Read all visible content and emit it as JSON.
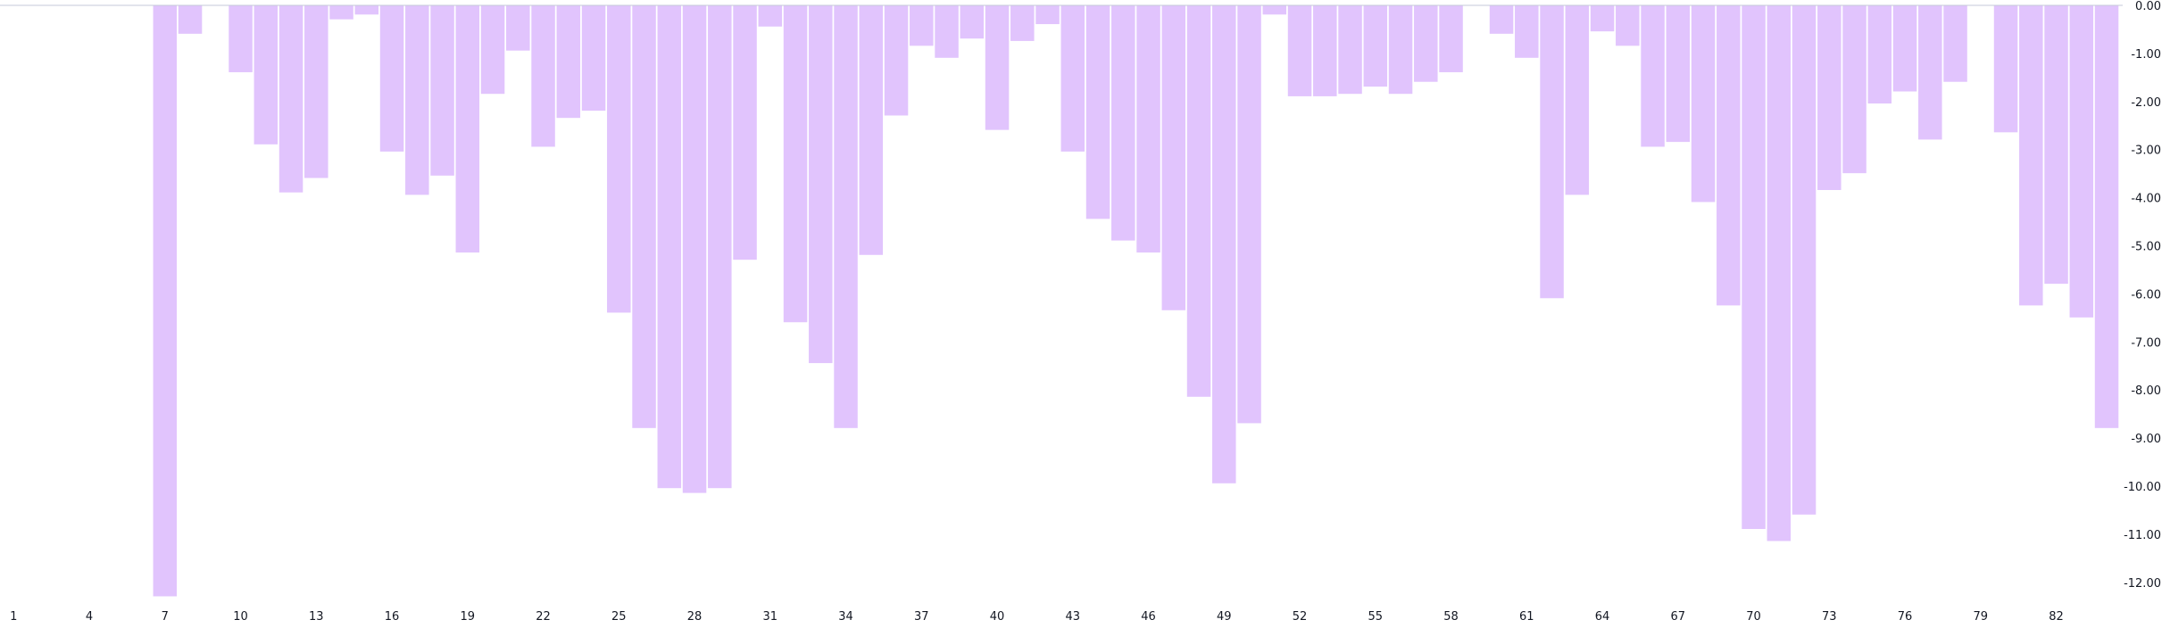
{
  "chart_data": {
    "type": "bar",
    "orientation": "vertical",
    "x": [
      1,
      2,
      3,
      4,
      5,
      6,
      7,
      8,
      9,
      10,
      11,
      12,
      13,
      14,
      15,
      16,
      17,
      18,
      19,
      20,
      21,
      22,
      23,
      24,
      25,
      26,
      27,
      28,
      29,
      30,
      31,
      32,
      33,
      34,
      35,
      36,
      37,
      38,
      39,
      40,
      41,
      42,
      43,
      44,
      45,
      46,
      47,
      48,
      49,
      50,
      51,
      52,
      53,
      54,
      55,
      56,
      57,
      58,
      59,
      60,
      61,
      62,
      63,
      64,
      65,
      66,
      67,
      68,
      69,
      70,
      71,
      72,
      73,
      74,
      75,
      76,
      77,
      78,
      79,
      80,
      81,
      82,
      83,
      84
    ],
    "values": [
      0,
      0,
      0,
      0,
      0,
      0,
      -12.3,
      -0.6,
      0,
      -1.4,
      -2.9,
      -3.9,
      -3.6,
      -0.3,
      -0.2,
      -3.05,
      -3.95,
      -3.55,
      -5.15,
      -1.85,
      -0.95,
      -2.95,
      -2.35,
      -2.2,
      -6.4,
      -8.8,
      -10.05,
      -10.15,
      -10.05,
      -5.3,
      -0.45,
      -6.6,
      -7.45,
      -8.8,
      -5.2,
      -2.3,
      -0.85,
      -1.1,
      -0.7,
      -2.6,
      -0.75,
      -0.4,
      -3.05,
      -4.45,
      -4.9,
      -5.15,
      -6.35,
      -8.15,
      -9.95,
      -8.7,
      -0.2,
      -1.9,
      -1.9,
      -1.85,
      -1.7,
      -1.85,
      -1.6,
      -1.4,
      0,
      -0.6,
      -1.1,
      -6.1,
      -3.95,
      -0.55,
      -0.85,
      -2.95,
      -2.85,
      -4.1,
      -6.25,
      -10.9,
      -11.15,
      -10.6,
      -3.85,
      -3.5,
      -2.05,
      -1.8,
      -2.8,
      -1.6,
      0,
      -2.65,
      -6.25,
      -5.8,
      -6.5,
      -8.8
    ],
    "x_tick_labels": [
      "1",
      "4",
      "7",
      "10",
      "13",
      "16",
      "19",
      "22",
      "25",
      "28",
      "31",
      "34",
      "37",
      "40",
      "43",
      "46",
      "49",
      "52",
      "55",
      "58",
      "61",
      "64",
      "67",
      "70",
      "73",
      "76",
      "79",
      "82"
    ],
    "y_tick_labels": [
      "0.00",
      "-1.00",
      "-2.00",
      "-3.00",
      "-4.00",
      "-5.00",
      "-6.00",
      "-7.00",
      "-8.00",
      "-9.00",
      "-10.00",
      "-11.00",
      "-12.00"
    ],
    "ylim": [
      -12.4,
      0
    ],
    "y_axis_position": "right",
    "grid": false,
    "legend": "none",
    "title": "",
    "xlabel": "",
    "ylabel": "",
    "bar_color": "#e1c4fd",
    "bar_edge_color": "#ffffff",
    "baseline_color": "#c5cad8",
    "text_color": "#131722"
  }
}
